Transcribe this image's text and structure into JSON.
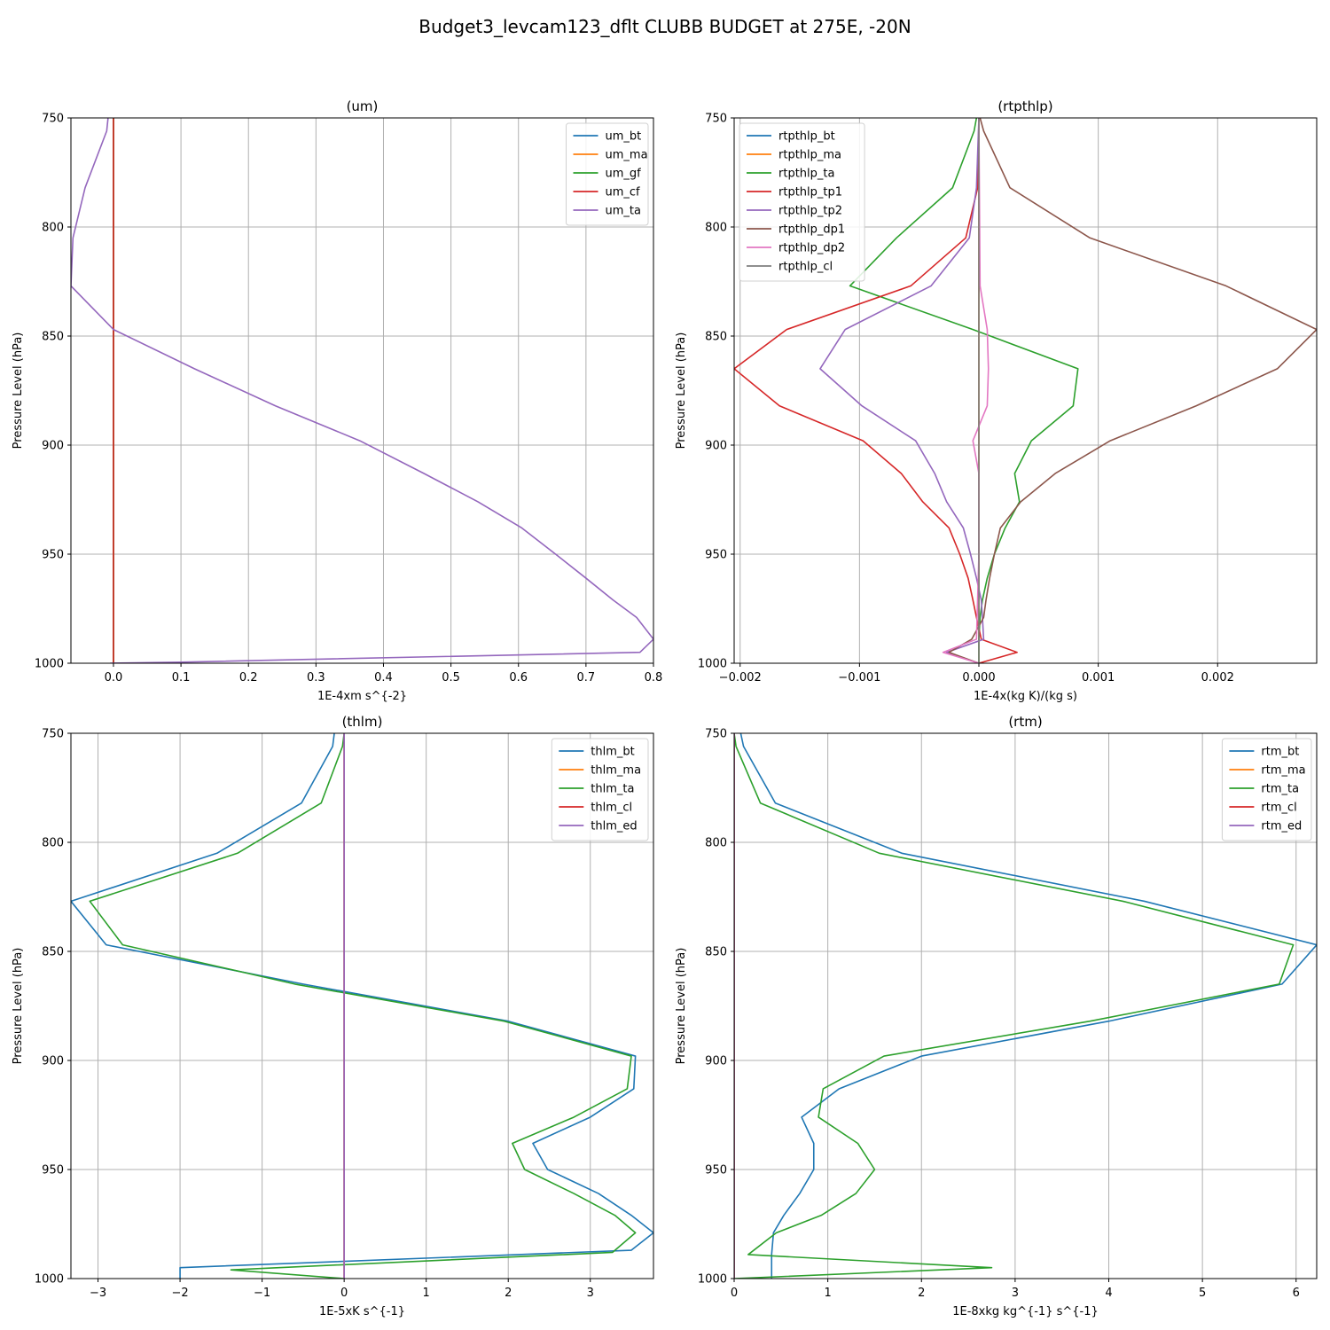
{
  "figure": {
    "title": "Budget3_levcam123_dflt CLUBB BUDGET at 275E, -20N"
  },
  "colors": {
    "blue": "#1f77b4",
    "orange": "#ff7f0e",
    "green": "#2ca02c",
    "red": "#d62728",
    "purple": "#9467bd",
    "brown": "#8c564b",
    "pink": "#e377c2",
    "gray": "#7f7f7f"
  },
  "chart_data": [
    {
      "type": "line",
      "title": "(um)",
      "xlabel": "1E-4xm s^{-2}",
      "ylabel": "Pressure Level (hPa)",
      "xlim": [
        -0.063,
        0.8
      ],
      "ylim": [
        1000,
        750
      ],
      "y_inverted": true,
      "xticks": [
        0.0,
        0.1,
        0.2,
        0.3,
        0.4,
        0.5,
        0.6,
        0.7,
        0.8
      ],
      "xtick_labels": [
        "0.0",
        "0.1",
        "0.2",
        "0.3",
        "0.4",
        "0.5",
        "0.6",
        "0.7",
        "0.8"
      ],
      "yticks": [
        750,
        800,
        850,
        900,
        950,
        1000
      ],
      "ytick_labels": [
        "750",
        "800",
        "850",
        "900",
        "950",
        "1000"
      ],
      "grid": true,
      "legend": "top-right",
      "series": [
        {
          "name": "um_bt",
          "color": "blue",
          "y": [
            750,
            1000
          ],
          "x": [
            0,
            0
          ]
        },
        {
          "name": "um_ma",
          "color": "orange",
          "y": [
            750,
            1000
          ],
          "x": [
            0,
            0
          ]
        },
        {
          "name": "um_gf",
          "color": "green",
          "y": [
            750,
            1000
          ],
          "x": [
            0,
            0
          ]
        },
        {
          "name": "um_cf",
          "color": "red",
          "y": [
            750,
            1000
          ],
          "x": [
            0,
            0
          ]
        },
        {
          "name": "um_ta",
          "color": "purple",
          "y": [
            750,
            756,
            782,
            805,
            827,
            847,
            865,
            882,
            898,
            913,
            926,
            938,
            950,
            961,
            971,
            979,
            989,
            995,
            999.5,
            1000
          ],
          "x": [
            -0.008,
            -0.01,
            -0.042,
            -0.06,
            -0.063,
            0.0,
            0.12,
            0.24,
            0.365,
            0.46,
            0.54,
            0.605,
            0.655,
            0.7,
            0.74,
            0.775,
            0.8,
            0.78,
            0.1,
            -0.005
          ]
        }
      ]
    },
    {
      "type": "line",
      "title": "(rtpthlp)",
      "xlabel": "1E-4x(kg K)/(kg s)",
      "ylabel": "Pressure Level (hPa)",
      "xlim": [
        -0.00205,
        0.00283
      ],
      "ylim": [
        1000,
        750
      ],
      "y_inverted": true,
      "xticks": [
        -0.002,
        -0.001,
        0.0,
        0.001,
        0.002
      ],
      "xtick_labels": [
        "−0.002",
        "−0.001",
        "0.000",
        "0.001",
        "0.002"
      ],
      "yticks": [
        750,
        800,
        850,
        900,
        950,
        1000
      ],
      "ytick_labels": [
        "750",
        "800",
        "850",
        "900",
        "950",
        "1000"
      ],
      "grid": true,
      "legend": "top-left",
      "series": [
        {
          "name": "rtpthlp_bt",
          "color": "blue",
          "y": [
            750,
            1000
          ],
          "x": [
            0,
            0
          ]
        },
        {
          "name": "rtpthlp_ma",
          "color": "orange",
          "y": [
            750,
            1000
          ],
          "x": [
            0,
            0
          ]
        },
        {
          "name": "rtpthlp_ta",
          "color": "green",
          "y": [
            750,
            756,
            782,
            805,
            827,
            847,
            865,
            882,
            898,
            913,
            926,
            938,
            950,
            961,
            971,
            979,
            989,
            995,
            1000
          ],
          "x": [
            -2e-05,
            -4e-05,
            -0.00022,
            -0.00069,
            -0.00108,
            -5e-05,
            0.00083,
            0.00079,
            0.00044,
            0.0003,
            0.00034,
            0.00022,
            0.00013,
            7e-05,
            3e-05,
            1e-05,
            0.0,
            0.0,
            0.0
          ]
        },
        {
          "name": "rtpthlp_tp1",
          "color": "red",
          "y": [
            750,
            782,
            805,
            827,
            847,
            865,
            882,
            898,
            913,
            926,
            938,
            950,
            961,
            971,
            979,
            989,
            995,
            1000
          ],
          "x": [
            0.0,
            -1e-05,
            -0.00011,
            -0.00057,
            -0.00161,
            -0.00205,
            -0.00167,
            -0.00097,
            -0.00065,
            -0.00047,
            -0.00025,
            -0.00016,
            -9e-05,
            -5e-05,
            -2e-05,
            2e-05,
            0.00032,
            0.0
          ]
        },
        {
          "name": "rtpthlp_tp2",
          "color": "purple",
          "y": [
            750,
            782,
            805,
            827,
            847,
            865,
            882,
            898,
            913,
            926,
            938,
            950,
            961,
            971,
            979,
            989,
            995,
            1000
          ],
          "x": [
            0.0,
            -2e-05,
            -8e-05,
            -0.0004,
            -0.00112,
            -0.00133,
            -0.00098,
            -0.00053,
            -0.00037,
            -0.00027,
            -0.00013,
            -7e-05,
            -2e-05,
            2e-05,
            3e-05,
            4e-05,
            -0.00027,
            0.0
          ]
        },
        {
          "name": "rtpthlp_dp1",
          "color": "brown",
          "y": [
            750,
            756,
            782,
            805,
            827,
            847,
            865,
            882,
            898,
            913,
            926,
            938,
            950,
            961,
            971,
            979,
            989,
            995,
            1000
          ],
          "x": [
            1e-05,
            4e-05,
            0.00026,
            0.00093,
            0.00207,
            0.00283,
            0.0025,
            0.00182,
            0.0011,
            0.00064,
            0.00035,
            0.00018,
            0.00013,
            9e-05,
            6e-05,
            4e-05,
            -6e-05,
            -0.00025,
            0.0
          ]
        },
        {
          "name": "rtpthlp_dp2",
          "color": "pink",
          "y": [
            750,
            827,
            847,
            865,
            882,
            898,
            913,
            926,
            950,
            989,
            995,
            1000
          ],
          "x": [
            0.0,
            1e-05,
            7e-05,
            8e-05,
            7e-05,
            -5e-05,
            0.0,
            0.0,
            0.0,
            -2e-05,
            -0.0003,
            0.0
          ]
        },
        {
          "name": "rtpthlp_cl",
          "color": "gray",
          "y": [
            750,
            1000
          ],
          "x": [
            0,
            0
          ]
        }
      ]
    },
    {
      "type": "line",
      "title": "(thlm)",
      "xlabel": "1E-5xK s^{-1}",
      "ylabel": "Pressure Level (hPa)",
      "xlim": [
        -3.33,
        3.77
      ],
      "ylim": [
        1000,
        750
      ],
      "y_inverted": true,
      "xticks": [
        -3,
        -2,
        -1,
        0,
        1,
        2,
        3
      ],
      "xtick_labels": [
        "−3",
        "−2",
        "−1",
        "0",
        "1",
        "2",
        "3"
      ],
      "yticks": [
        750,
        800,
        850,
        900,
        950,
        1000
      ],
      "ytick_labels": [
        "750",
        "800",
        "850",
        "900",
        "950",
        "1000"
      ],
      "grid": true,
      "legend": "top-right",
      "series": [
        {
          "name": "thlm_bt",
          "color": "blue",
          "y": [
            750,
            756,
            782,
            805,
            827,
            847,
            865,
            882,
            898,
            913,
            926,
            938,
            950,
            961,
            971,
            979,
            987,
            995,
            1000
          ],
          "x": [
            -0.12,
            -0.14,
            -0.52,
            -1.55,
            -3.33,
            -2.9,
            -0.5,
            2.0,
            3.55,
            3.53,
            3.0,
            2.3,
            2.48,
            3.1,
            3.5,
            3.77,
            3.5,
            -2.0,
            -2.0
          ]
        },
        {
          "name": "thlm_ma",
          "color": "orange",
          "y": [
            750,
            1000
          ],
          "x": [
            0,
            0
          ]
        },
        {
          "name": "thlm_ta",
          "color": "green",
          "y": [
            750,
            756,
            782,
            805,
            827,
            847,
            865,
            882,
            898,
            913,
            926,
            938,
            950,
            961,
            971,
            979,
            988,
            996,
            1000
          ],
          "x": [
            0.0,
            -0.02,
            -0.28,
            -1.3,
            -3.1,
            -2.7,
            -0.6,
            1.95,
            3.5,
            3.45,
            2.8,
            2.05,
            2.2,
            2.8,
            3.3,
            3.55,
            3.27,
            -1.38,
            0.0
          ]
        },
        {
          "name": "thlm_cl",
          "color": "red",
          "y": [
            750,
            1000
          ],
          "x": [
            0,
            0
          ]
        },
        {
          "name": "thlm_ed",
          "color": "purple",
          "y": [
            750,
            1000
          ],
          "x": [
            0,
            0
          ]
        }
      ]
    },
    {
      "type": "line",
      "title": "(rtm)",
      "xlabel": "1E-8xkg kg^{-1} s^{-1}",
      "ylabel": "Pressure Level (hPa)",
      "xlim": [
        0,
        6.22
      ],
      "ylim": [
        1000,
        750
      ],
      "y_inverted": true,
      "xticks": [
        0,
        1,
        2,
        3,
        4,
        5,
        6
      ],
      "xtick_labels": [
        "0",
        "1",
        "2",
        "3",
        "4",
        "5",
        "6"
      ],
      "yticks": [
        750,
        800,
        850,
        900,
        950,
        1000
      ],
      "ytick_labels": [
        "750",
        "800",
        "850",
        "900",
        "950",
        "1000"
      ],
      "grid": true,
      "legend": "top-right",
      "series": [
        {
          "name": "rtm_bt",
          "color": "blue",
          "y": [
            750,
            756,
            782,
            805,
            827,
            847,
            865,
            882,
            898,
            913,
            926,
            938,
            950,
            961,
            971,
            979,
            989,
            996,
            1000
          ],
          "x": [
            0.07,
            0.1,
            0.44,
            1.79,
            4.38,
            6.22,
            5.85,
            4.0,
            2.0,
            1.12,
            0.72,
            0.85,
            0.85,
            0.7,
            0.53,
            0.42,
            0.4,
            0.4,
            0.4
          ]
        },
        {
          "name": "rtm_ma",
          "color": "orange",
          "y": [
            750,
            1000
          ],
          "x": [
            0,
            0
          ]
        },
        {
          "name": "rtm_ta",
          "color": "green",
          "y": [
            750,
            756,
            782,
            805,
            827,
            847,
            865,
            882,
            898,
            913,
            926,
            938,
            950,
            961,
            971,
            979,
            989,
            995,
            1000
          ],
          "x": [
            0.0,
            0.02,
            0.28,
            1.55,
            4.15,
            5.97,
            5.82,
            3.8,
            1.6,
            0.95,
            0.9,
            1.32,
            1.5,
            1.3,
            0.93,
            0.45,
            0.15,
            2.75,
            0.0
          ]
        },
        {
          "name": "rtm_cl",
          "color": "red",
          "y": [
            750,
            1000
          ],
          "x": [
            0,
            0
          ]
        },
        {
          "name": "rtm_ed",
          "color": "purple",
          "y": [
            750,
            1000
          ],
          "x": [
            0,
            0
          ]
        }
      ]
    }
  ]
}
